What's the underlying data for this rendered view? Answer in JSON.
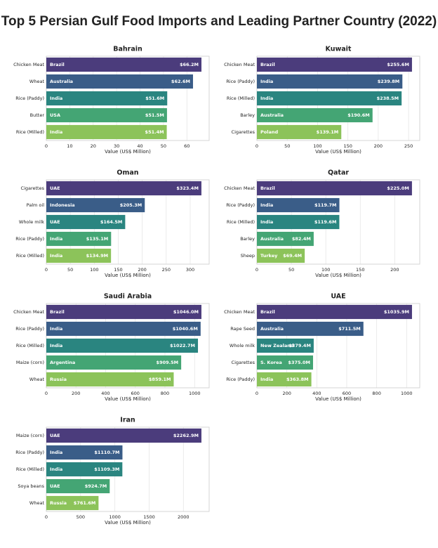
{
  "title": "Top 5 Persian Gulf Food Imports and Leading Partner Country (2022)",
  "chart_data": [
    {
      "type": "barh",
      "title": "Bahrain",
      "xlabel": "Value (US$ Million)",
      "categories": [
        "Chicken Meat",
        "Wheat",
        "Rice (Paddy)",
        "Butter",
        "Rice (Milled)"
      ],
      "partners": [
        "Brazil",
        "Australia",
        "India",
        "USA",
        "India"
      ],
      "values": [
        66.2,
        62.6,
        51.6,
        51.5,
        51.4
      ],
      "value_labels": [
        "$66.2M",
        "$62.6M",
        "$51.6M",
        "$51.5M",
        "$51.4M"
      ],
      "colors": [
        "#4b3c7c",
        "#3a5d88",
        "#2a8580",
        "#44a574",
        "#8cc35a"
      ],
      "xlim": [
        0,
        69.5
      ],
      "xticks": [
        0,
        10,
        20,
        30,
        40,
        50,
        60
      ],
      "grid": true
    },
    {
      "type": "barh",
      "title": "Kuwait",
      "xlabel": "Value (US$ Million)",
      "categories": [
        "Chicken Meat",
        "Rice (Paddy)",
        "Rice (Milled)",
        "Barley",
        "Cigarettes"
      ],
      "partners": [
        "Brazil",
        "India",
        "India",
        "Australia",
        "Poland"
      ],
      "values": [
        255.6,
        239.8,
        238.5,
        190.6,
        139.1
      ],
      "value_labels": [
        "$255.6M",
        "$239.8M",
        "$238.5M",
        "$190.6M",
        "$139.1M"
      ],
      "colors": [
        "#4b3c7c",
        "#3a5d88",
        "#2a8580",
        "#44a574",
        "#8cc35a"
      ],
      "xlim": [
        0,
        268.4
      ],
      "xticks": [
        0,
        50,
        100,
        150,
        200,
        250
      ],
      "grid": true
    },
    {
      "type": "barh",
      "title": "Oman",
      "xlabel": "Value (US$ Million)",
      "categories": [
        "Cigarettes",
        "Palm oil",
        "Whole milk",
        "Rice (Paddy)",
        "Rice (Milled)"
      ],
      "partners": [
        "UAE",
        "Indonesia",
        "UAE",
        "India",
        "India"
      ],
      "values": [
        323.4,
        205.3,
        164.5,
        135.1,
        134.9
      ],
      "value_labels": [
        "$323.4M",
        "$205.3M",
        "$164.5M",
        "$135.1M",
        "$134.9M"
      ],
      "colors": [
        "#4b3c7c",
        "#3a5d88",
        "#2a8580",
        "#44a574",
        "#8cc35a"
      ],
      "xlim": [
        0,
        339.6
      ],
      "xticks": [
        0,
        50,
        100,
        150,
        200,
        250,
        300
      ],
      "grid": true
    },
    {
      "type": "barh",
      "title": "Qatar",
      "xlabel": "Value (US$ Million)",
      "categories": [
        "Chicken Meat",
        "Rice (Paddy)",
        "Rice (Milled)",
        "Barley",
        "Sheep"
      ],
      "partners": [
        "Brazil",
        "India",
        "India",
        "Australia",
        "Turkey"
      ],
      "values": [
        225.0,
        119.7,
        119.6,
        82.4,
        69.4
      ],
      "value_labels": [
        "$225.0M",
        "$119.7M",
        "$119.6M",
        "$82.4M",
        "$69.4M"
      ],
      "colors": [
        "#4b3c7c",
        "#3a5d88",
        "#2a8580",
        "#44a574",
        "#8cc35a"
      ],
      "xlim": [
        0,
        236.3
      ],
      "xticks": [
        0,
        50,
        100,
        150,
        200
      ],
      "grid": true
    },
    {
      "type": "barh",
      "title": "Saudi Arabia",
      "xlabel": "Value (US$ Million)",
      "categories": [
        "Chicken Meat",
        "Rice (Paddy)",
        "Rice (Milled)",
        "Maize (corn)",
        "Wheat"
      ],
      "partners": [
        "Brazil",
        "India",
        "India",
        "Argentina",
        "Russia"
      ],
      "values": [
        1046.0,
        1040.6,
        1022.7,
        909.5,
        859.1
      ],
      "value_labels": [
        "$1046.0M",
        "$1040.6M",
        "$1022.7M",
        "$909.5M",
        "$859.1M"
      ],
      "colors": [
        "#4b3c7c",
        "#3a5d88",
        "#2a8580",
        "#44a574",
        "#8cc35a"
      ],
      "xlim": [
        0,
        1098.3
      ],
      "xticks": [
        0,
        200,
        400,
        600,
        800,
        1000
      ],
      "grid": true
    },
    {
      "type": "barh",
      "title": "UAE",
      "xlabel": "Value (US$ Million)",
      "categories": [
        "Chicken Meat",
        "Rape Seed",
        "Whole milk",
        "Cigarettes",
        "Rice (Paddy)"
      ],
      "partners": [
        "Brazil",
        "Australia",
        "New Zealand",
        "S. Korea",
        "India"
      ],
      "values": [
        1035.9,
        711.5,
        379.4,
        375.0,
        363.8
      ],
      "value_labels": [
        "$1035.9M",
        "$711.5M",
        "$379.4M",
        "$375.0M",
        "$363.8M"
      ],
      "colors": [
        "#4b3c7c",
        "#3a5d88",
        "#2a8580",
        "#44a574",
        "#8cc35a"
      ],
      "xlim": [
        0,
        1087.7
      ],
      "xticks": [
        0,
        200,
        400,
        600,
        800,
        1000
      ],
      "grid": true
    },
    {
      "type": "barh",
      "title": "Iran",
      "xlabel": "Value (US$ Million)",
      "categories": [
        "Maize (corn)",
        "Rice (Paddy)",
        "Rice (Milled)",
        "Soya beans",
        "Wheat"
      ],
      "partners": [
        "UAE",
        "India",
        "India",
        "UAE",
        "Russia"
      ],
      "values": [
        2262.9,
        1110.7,
        1109.3,
        924.7,
        761.6
      ],
      "value_labels": [
        "$2262.9M",
        "$1110.7M",
        "$1109.3M",
        "$924.7M",
        "$761.6M"
      ],
      "colors": [
        "#4b3c7c",
        "#3a5d88",
        "#2a8580",
        "#44a574",
        "#8cc35a"
      ],
      "xlim": [
        0,
        2376.0
      ],
      "xticks": [
        0,
        500,
        1000,
        1500,
        2000
      ],
      "grid": true
    }
  ]
}
